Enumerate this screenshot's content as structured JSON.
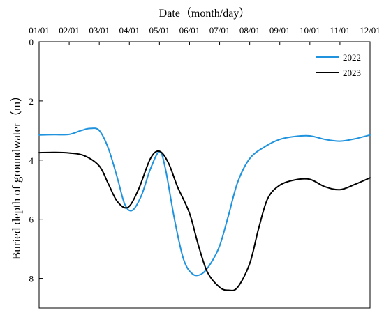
{
  "chart_data": {
    "type": "line",
    "title": "",
    "xlabel": "Date（month/day）",
    "ylabel": "Buried depth of groundwater（m）",
    "x_ticks": [
      "01/01",
      "02/01",
      "03/01",
      "04/01",
      "05/01",
      "06/01",
      "07/01",
      "08/01",
      "09/01",
      "10/01",
      "11/01",
      "12/01"
    ],
    "xlim": [
      1,
      12
    ],
    "ylim": [
      0,
      9
    ],
    "y_inverted": true,
    "y_ticks": [
      0,
      2,
      4,
      6,
      8
    ],
    "grid": false,
    "legend_position": "top-right",
    "series": [
      {
        "name": "2022",
        "color": "#1f93de",
        "points": [
          [
            1.0,
            3.15
          ],
          [
            1.5,
            3.14
          ],
          [
            2.0,
            3.13
          ],
          [
            2.4,
            3.0
          ],
          [
            2.7,
            2.93
          ],
          [
            3.0,
            3.0
          ],
          [
            3.3,
            3.6
          ],
          [
            3.6,
            4.6
          ],
          [
            3.85,
            5.5
          ],
          [
            4.1,
            5.7
          ],
          [
            4.4,
            5.2
          ],
          [
            4.7,
            4.3
          ],
          [
            5.0,
            3.72
          ],
          [
            5.2,
            4.3
          ],
          [
            5.5,
            6.0
          ],
          [
            5.8,
            7.35
          ],
          [
            6.1,
            7.85
          ],
          [
            6.4,
            7.85
          ],
          [
            6.7,
            7.5
          ],
          [
            7.0,
            6.9
          ],
          [
            7.3,
            5.85
          ],
          [
            7.6,
            4.75
          ],
          [
            8.0,
            3.95
          ],
          [
            8.5,
            3.55
          ],
          [
            9.0,
            3.3
          ],
          [
            9.5,
            3.2
          ],
          [
            10.0,
            3.18
          ],
          [
            10.5,
            3.3
          ],
          [
            11.0,
            3.36
          ],
          [
            11.5,
            3.28
          ],
          [
            12.0,
            3.15
          ]
        ]
      },
      {
        "name": "2023",
        "color": "#000000",
        "points": [
          [
            1.0,
            3.75
          ],
          [
            1.5,
            3.74
          ],
          [
            2.0,
            3.76
          ],
          [
            2.5,
            3.85
          ],
          [
            3.0,
            4.2
          ],
          [
            3.3,
            4.8
          ],
          [
            3.6,
            5.4
          ],
          [
            3.95,
            5.6
          ],
          [
            4.3,
            5.0
          ],
          [
            4.7,
            3.95
          ],
          [
            5.0,
            3.7
          ],
          [
            5.3,
            4.1
          ],
          [
            5.6,
            4.9
          ],
          [
            6.0,
            5.8
          ],
          [
            6.3,
            6.9
          ],
          [
            6.6,
            7.8
          ],
          [
            7.0,
            8.3
          ],
          [
            7.3,
            8.4
          ],
          [
            7.6,
            8.3
          ],
          [
            8.0,
            7.5
          ],
          [
            8.3,
            6.3
          ],
          [
            8.6,
            5.3
          ],
          [
            9.0,
            4.85
          ],
          [
            9.5,
            4.67
          ],
          [
            10.0,
            4.65
          ],
          [
            10.5,
            4.9
          ],
          [
            11.0,
            5.0
          ],
          [
            11.5,
            4.82
          ],
          [
            12.0,
            4.6
          ]
        ]
      }
    ]
  }
}
